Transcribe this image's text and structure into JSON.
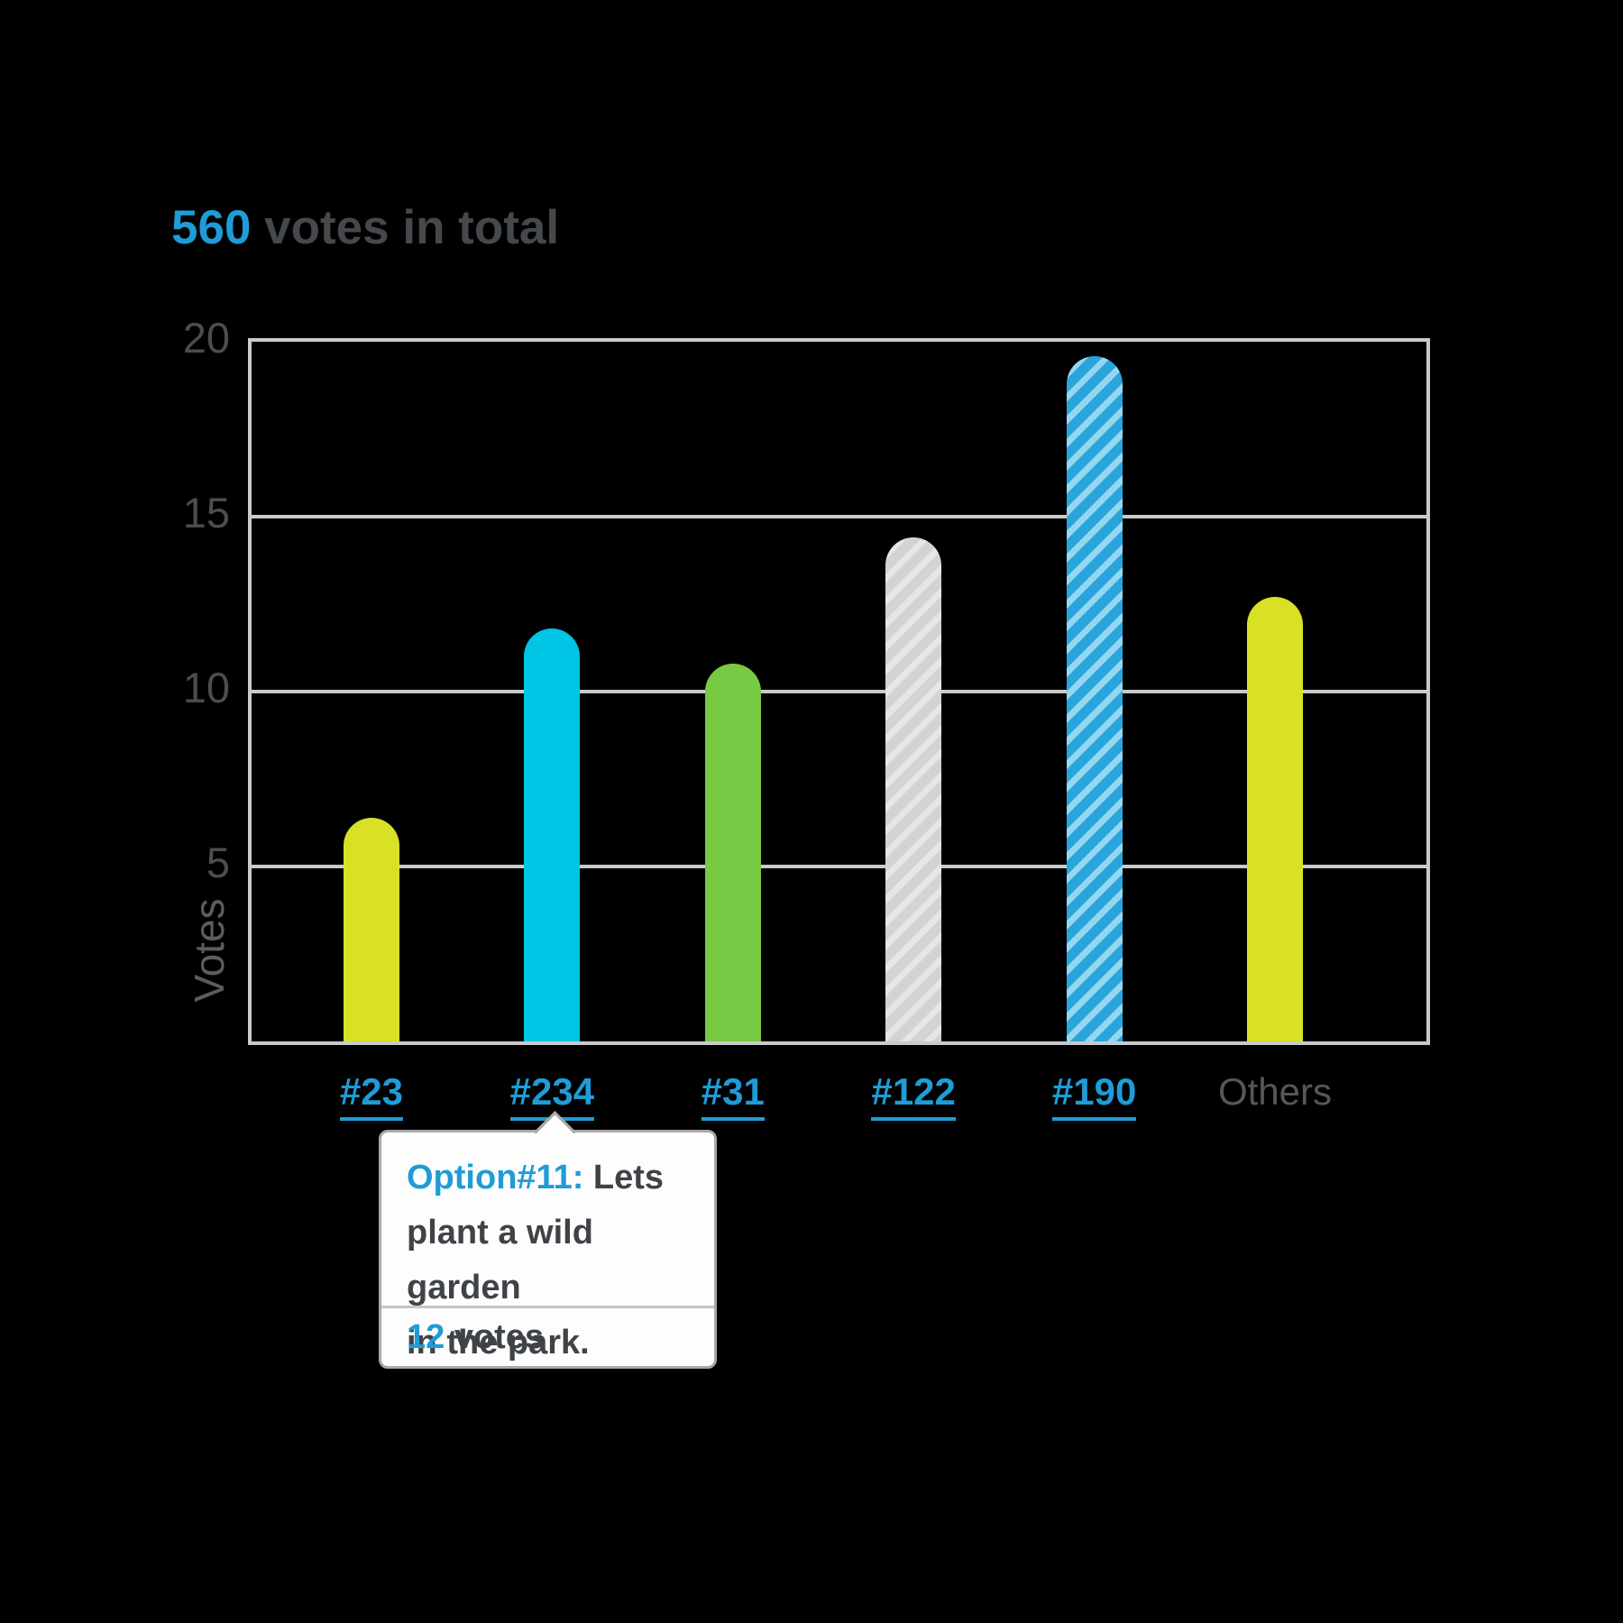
{
  "header": {
    "count": "560",
    "suffix": " votes in total"
  },
  "chart_data": {
    "type": "bar",
    "title": "560 votes in total",
    "categories": [
      "#23",
      "#234",
      "#31",
      "#122",
      "#190",
      "Others"
    ],
    "values": [
      6.4,
      11.8,
      10.8,
      14.4,
      19.6,
      12.7
    ],
    "xlabel": "",
    "ylabel": "Votes",
    "yticks": [
      20,
      15,
      10,
      5
    ],
    "ylim": [
      0,
      20
    ],
    "grid": "horizontal",
    "legend": "none",
    "styles": [
      {
        "fill": "#d8e125",
        "stripe": null,
        "link": true
      },
      {
        "fill": "#00c5e4",
        "stripe": null,
        "link": true
      },
      {
        "fill": "#78c944",
        "stripe": null,
        "link": true
      },
      {
        "fill": "#d3d3d4",
        "stripe": "#e6e6e7",
        "link": true
      },
      {
        "fill": "#2aa5dc",
        "stripe": "#93d7f1",
        "link": true
      },
      {
        "fill": "#d8e125",
        "stripe": null,
        "link": false
      }
    ]
  },
  "tooltip": {
    "target": "#234",
    "option_label": "Option#11:",
    "line1_rest": " Lets",
    "line2": "plant a wild garden",
    "line3": "in the park.",
    "votes_count": "12",
    "votes_unit": " votes"
  },
  "colors": {
    "accent_blue": "#1f9cd7",
    "axis_gray": "#c9cacb",
    "text_dark": "#3f4347",
    "background": "#000000"
  }
}
